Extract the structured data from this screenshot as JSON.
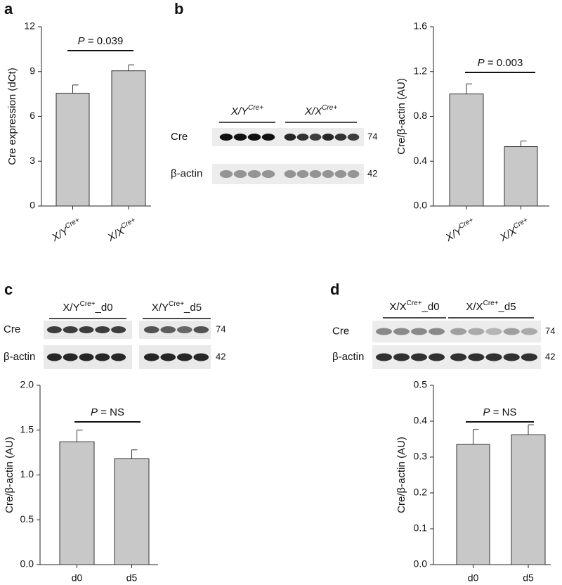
{
  "panel_labels": [
    "a",
    "b",
    "c",
    "d"
  ],
  "chart_data": [
    {
      "type": "bar",
      "y_label": "Cre expression (dCt)",
      "categories": [
        "X/YCre+",
        "X/XCre+"
      ],
      "values": [
        7.55,
        9.05
      ],
      "errors": [
        0.55,
        0.4
      ],
      "annotation": "P = 0.039",
      "color": "#c8c8c8",
      "ylim": [
        0,
        12
      ],
      "yticks": [
        0,
        3,
        6,
        9,
        12
      ]
    },
    {
      "type": "bar",
      "y_label": "Cre/β-actin (AU)",
      "categories": [
        "X/YCre+",
        "X/XCre+"
      ],
      "values": [
        1.0,
        0.53
      ],
      "errors": [
        0.09,
        0.05
      ],
      "annotation": "P = 0.003",
      "color": "#c8c8c8",
      "ylim": [
        0,
        1.6
      ],
      "yticks": [
        {
          "value": 0,
          "label": "0.0"
        },
        0.4,
        0.8,
        1.2,
        1.6
      ]
    },
    {
      "type": "bar",
      "y_label": "Cre/β-actin (AU)",
      "categories": [
        "d0",
        "d5"
      ],
      "values": [
        1.37,
        1.18
      ],
      "errors": [
        0.13,
        0.1
      ],
      "annotation": "P = NS",
      "color": "#c8c8c8",
      "ylim": [
        0,
        2
      ],
      "yticks": [
        {
          "value": 0,
          "label": "0.0"
        },
        0.5,
        {
          "value": 1,
          "label": "1.0"
        },
        1.5,
        {
          "value": 2,
          "label": "2.0"
        }
      ]
    },
    {
      "type": "bar",
      "y_label": "Cre/β-actin (AU)",
      "categories": [
        "d0",
        "d5"
      ],
      "values": [
        0.335,
        0.362
      ],
      "errors": [
        0.042,
        0.028
      ],
      "annotation": "P = NS",
      "color": "#c8c8c8",
      "ylim": [
        0,
        0.5
      ],
      "yticks": [
        {
          "value": 0,
          "label": "0.0"
        },
        0.1,
        0.2,
        0.3,
        0.4,
        0.5
      ]
    }
  ],
  "blots": [
    {
      "groups": [
        "X/YCre+",
        "X/XCre+"
      ],
      "rows": [
        {
          "label": "Cre",
          "size": 74
        },
        {
          "label": "β-actin",
          "size": 42
        }
      ]
    },
    {
      "groups": [
        "X/YCre+_d0",
        "X/YCre+_d5"
      ],
      "rows": [
        {
          "label": "Cre",
          "size": 74
        },
        {
          "label": "β-actin",
          "size": 42
        }
      ]
    },
    {
      "groups": [
        "X/XCre+_d0",
        "X/XCre+_d5"
      ],
      "rows": [
        {
          "label": "Cre",
          "size": 74
        },
        {
          "label": "β-actin",
          "size": 42
        }
      ]
    }
  ]
}
